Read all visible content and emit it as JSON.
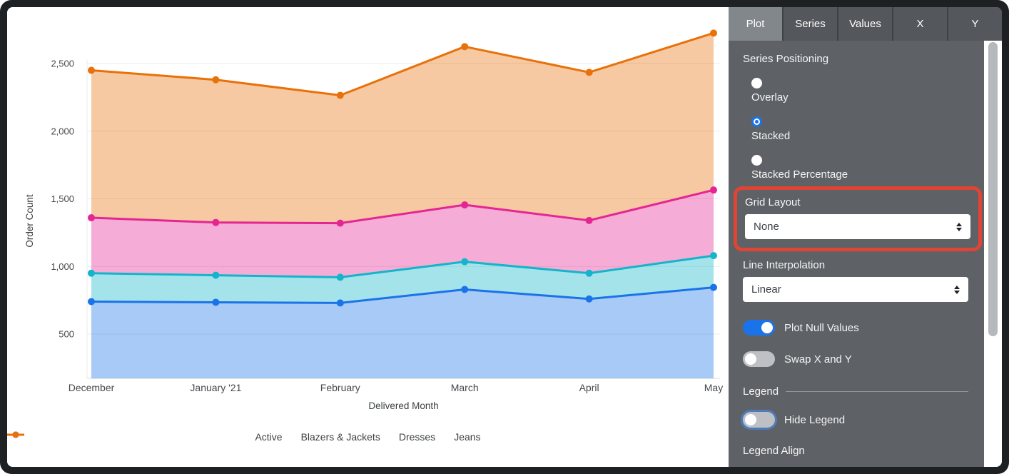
{
  "colors": {
    "accent_blue": "#1a73e8",
    "panel_bg": "#5e6266",
    "tab_selected_bg": "#82878b",
    "highlight_red": "#e14434",
    "toggle_off_gray": "#bdc1c6",
    "grid_line": "#e9ebed",
    "axis_text": "#45494d"
  },
  "panel": {
    "tabs": [
      {
        "label": "Plot",
        "active": true
      },
      {
        "label": "Series",
        "active": false
      },
      {
        "label": "Values",
        "active": false
      },
      {
        "label": "X",
        "active": false
      },
      {
        "label": "Y",
        "active": false
      }
    ],
    "series_positioning": {
      "label": "Series Positioning",
      "options": [
        {
          "label": "Overlay",
          "selected": false
        },
        {
          "label": "Stacked",
          "selected": true
        },
        {
          "label": "Stacked Percentage",
          "selected": false
        }
      ]
    },
    "grid_layout": {
      "label": "Grid Layout",
      "value": "None",
      "highlighted": true
    },
    "line_interpolation": {
      "label": "Line Interpolation",
      "value": "Linear"
    },
    "toggles": [
      {
        "label": "Plot Null Values",
        "on": true,
        "focus_ring": false
      },
      {
        "label": "Swap X and Y",
        "on": false,
        "focus_ring": false
      }
    ],
    "legend_section": {
      "header": "Legend",
      "hide_legend": {
        "label": "Hide Legend",
        "on": false,
        "focus_ring": true
      },
      "legend_align_label": "Legend Align"
    }
  },
  "chart_data": {
    "type": "area",
    "series_positioning": "stacked",
    "stacked": true,
    "grid": "horizontal",
    "x_title": "Delivered Month",
    "y_title": "Order Count",
    "categories": [
      "December",
      "January '21",
      "February",
      "March",
      "April",
      "May"
    ],
    "series": [
      {
        "name": "Active",
        "color": "#1a73e8",
        "values": [
          740,
          735,
          730,
          830,
          760,
          845
        ]
      },
      {
        "name": "Blazers & Jackets",
        "color": "#12b5cb",
        "values": [
          210,
          200,
          190,
          205,
          190,
          235
        ]
      },
      {
        "name": "Dresses",
        "color": "#e52592",
        "values": [
          410,
          390,
          400,
          420,
          390,
          485
        ]
      },
      {
        "name": "Jeans",
        "color": "#e8710a",
        "values": [
          1090,
          1055,
          945,
          1170,
          1095,
          1160
        ]
      }
    ],
    "stacked_totals_note": "markers sit at cumulative sums: e.g. December 740/950/1360/2450",
    "y_ticks": [
      {
        "value": 500,
        "label": "500"
      },
      {
        "value": 1000,
        "label": "1,000"
      },
      {
        "value": 1500,
        "label": "1,500"
      },
      {
        "value": 2000,
        "label": "2,000"
      },
      {
        "value": 2500,
        "label": "2,500"
      }
    ],
    "ylim_top": 2850,
    "legend_position": "bottom",
    "legend_entries": [
      "Active",
      "Blazers & Jackets",
      "Dresses",
      "Jeans"
    ]
  }
}
